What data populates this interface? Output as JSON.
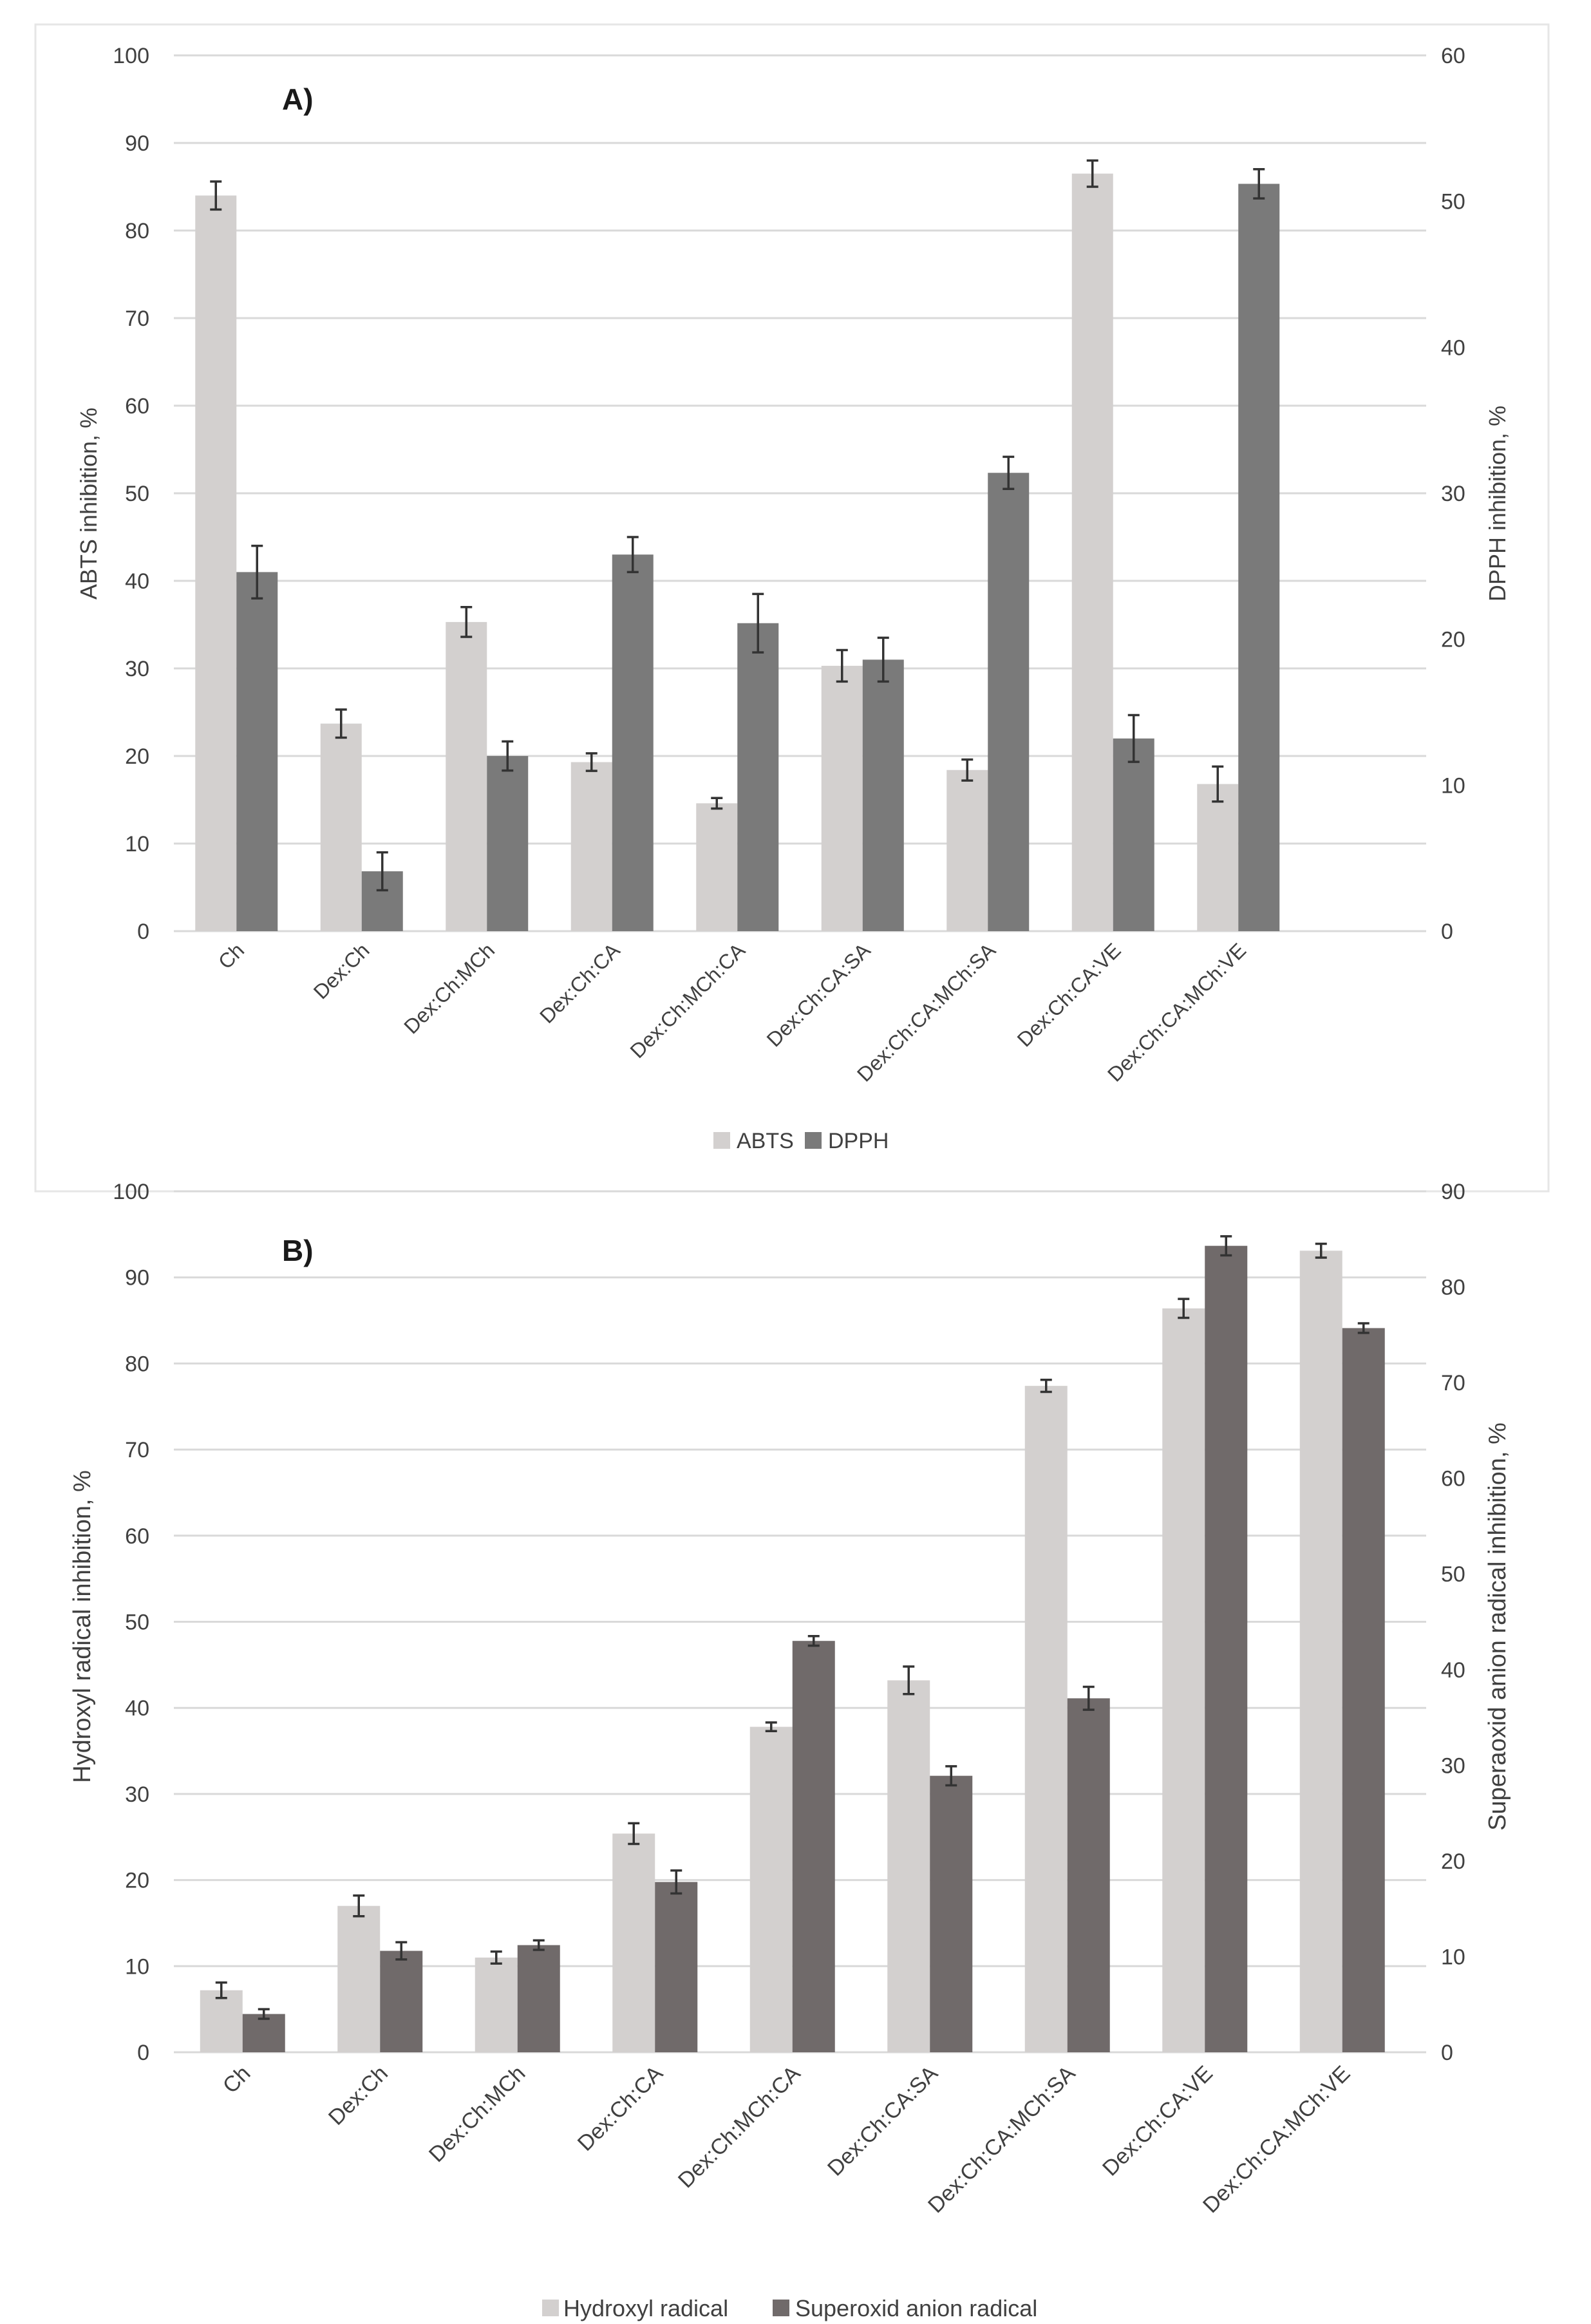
{
  "chart_data": [
    {
      "type": "bar",
      "title": "A)",
      "categories": [
        "Ch",
        "Dex:Ch",
        "Dex:Ch:MCh",
        "Dex:Ch:CA",
        "Dex:Ch:MCh:CA",
        "Dex:Ch:CA:SA",
        "Dex:Ch:CA:MCh:SA",
        "Dex:Ch:CA:VE",
        "Dex:Ch:CA:MCh:VE"
      ],
      "ylabel": "ABTS inhibition, %",
      "y2label": "DPPH inhibition, %",
      "ylim": [
        0,
        100
      ],
      "y2lim": [
        0,
        60
      ],
      "yticks": [
        "0",
        "10",
        "20",
        "30",
        "40",
        "50",
        "60",
        "70",
        "80",
        "90",
        "100"
      ],
      "y2ticks": [
        "0",
        "10",
        "20",
        "30",
        "40",
        "50",
        "60"
      ],
      "legend_position": "bottom",
      "series": [
        {
          "name": "ABTS",
          "axis": "left",
          "color": "#d3d0cf",
          "values": [
            84,
            23.7,
            35.3,
            19.3,
            14.6,
            30.3,
            18.4,
            86.5,
            16.8
          ],
          "errors": [
            1.6,
            1.6,
            1.7,
            1.0,
            0.6,
            1.8,
            1.2,
            1.5,
            2.0
          ]
        },
        {
          "name": "DPPH",
          "axis": "right",
          "color": "#7a7a7a",
          "values": [
            24.6,
            4.1,
            12.0,
            25.8,
            21.1,
            18.6,
            31.4,
            13.2,
            51.2
          ],
          "errors": [
            1.8,
            1.3,
            1.0,
            1.2,
            2.0,
            1.5,
            1.1,
            1.6,
            1.0
          ]
        }
      ]
    },
    {
      "type": "bar",
      "title": "B)",
      "categories": [
        "Ch",
        "Dex:Ch",
        "Dex:Ch:MCh",
        "Dex:Ch:CA",
        "Dex:Ch:MCh:CA",
        "Dex:Ch:CA:SA",
        "Dex:Ch:CA:MCh:SA",
        "Dex:Ch:CA:VE",
        "Dex:Ch:CA:MCh:VE"
      ],
      "ylabel": "Hydroxyl radical inhibition, %",
      "y2label": "Superaoxid anion radical inhibition, %",
      "ylim": [
        0,
        100
      ],
      "y2lim": [
        0,
        90
      ],
      "yticks": [
        "0",
        "10",
        "20",
        "30",
        "40",
        "50",
        "60",
        "70",
        "80",
        "90",
        "100"
      ],
      "y2ticks": [
        "0",
        "10",
        "20",
        "30",
        "40",
        "50",
        "60",
        "70",
        "80",
        "90"
      ],
      "legend_position": "bottom",
      "series": [
        {
          "name": "Hydroxyl radical",
          "axis": "left",
          "color": "#d3d0cf",
          "values": [
            7.2,
            17.0,
            11.0,
            25.4,
            37.8,
            43.2,
            77.4,
            86.4,
            93.1
          ],
          "errors": [
            0.9,
            1.2,
            0.7,
            1.2,
            0.5,
            1.6,
            0.7,
            1.1,
            0.8
          ]
        },
        {
          "name": "Superoxid anion radical",
          "axis": "right",
          "color": "#706a6a",
          "values": [
            4.0,
            10.6,
            11.2,
            17.8,
            43.0,
            28.9,
            37.0,
            84.3,
            75.7
          ],
          "errors": [
            0.5,
            0.9,
            0.5,
            1.2,
            0.5,
            1.0,
            1.2,
            1.0,
            0.5
          ]
        }
      ]
    }
  ]
}
